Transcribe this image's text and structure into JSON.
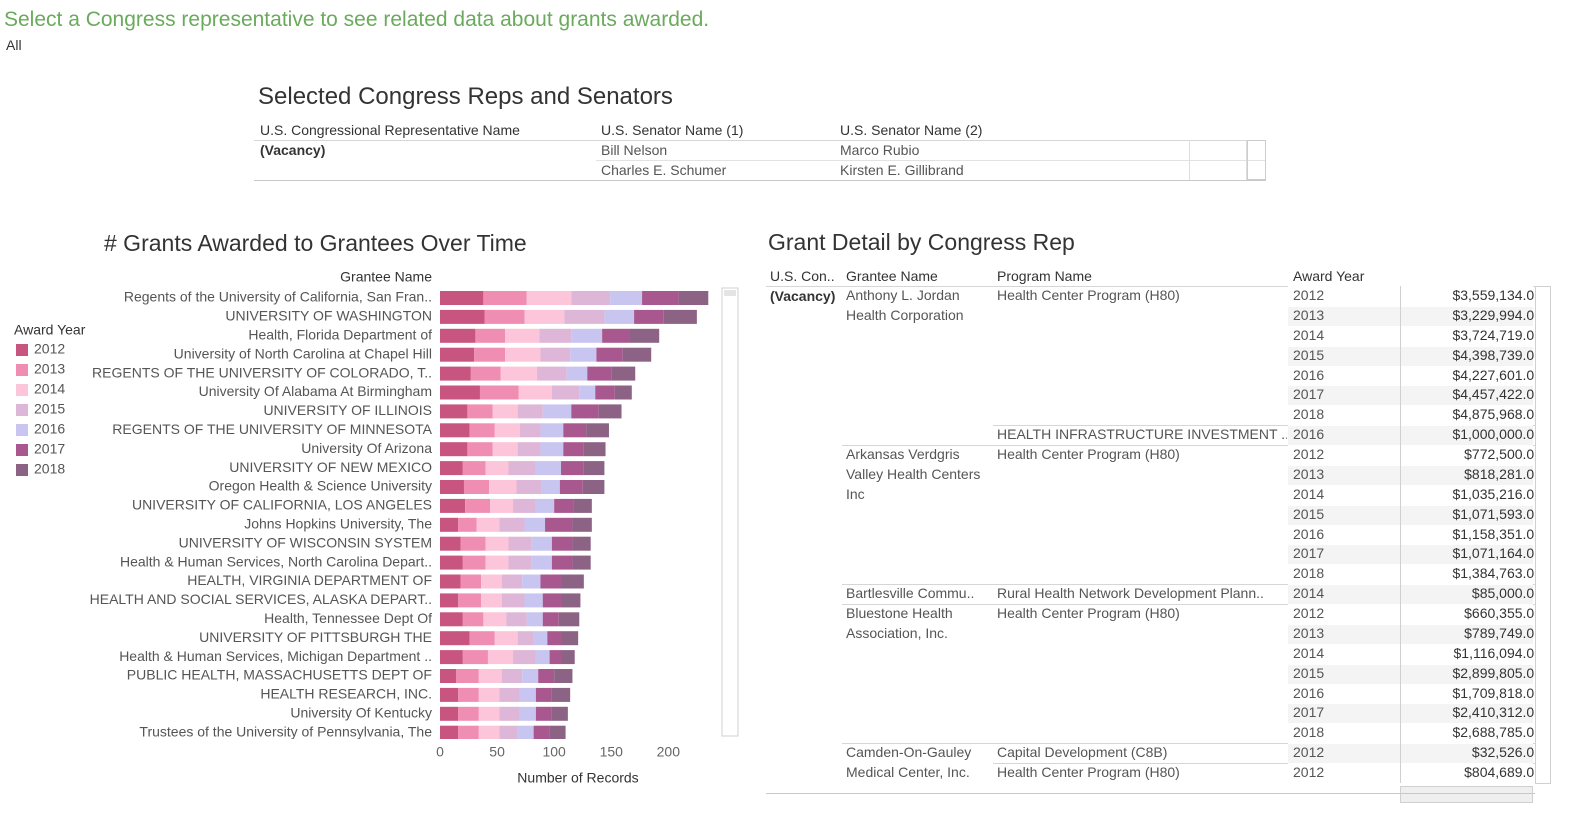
{
  "header": {
    "title": "Select a Congress representative to see related data about grants awarded.",
    "filter_value": "All"
  },
  "reps_table": {
    "title": "Selected Congress Reps and Senators",
    "columns": [
      "U.S. Congressional Representative Name",
      "U.S. Senator Name (1)",
      "U.S. Senator Name (2)"
    ],
    "rep": "(Vacancy)",
    "senators": [
      [
        "Bill Nelson",
        "Marco Rubio"
      ],
      [
        "Charles E. Schumer",
        "Kirsten E. Gillibrand"
      ]
    ]
  },
  "chart_data": {
    "type": "bar",
    "orientation": "horizontal",
    "stacked": true,
    "title": "# Grants Awarded to Grantees Over Time",
    "y_label": "Grantee Name",
    "x_label": "Number of Records",
    "legend_title": "Award Year",
    "categories": [
      "Regents of the University of California, San Fran..",
      "UNIVERSITY OF WASHINGTON",
      "Health, Florida Department of",
      "University of North Carolina at Chapel Hill",
      "REGENTS OF THE UNIVERSITY OF COLORADO, T..",
      "University Of Alabama At Birmingham",
      "UNIVERSITY OF ILLINOIS",
      "REGENTS OF THE UNIVERSITY OF MINNESOTA",
      "University Of Arizona",
      "UNIVERSITY OF NEW MEXICO",
      "Oregon Health & Science University",
      "UNIVERSITY OF CALIFORNIA, LOS ANGELES",
      "Johns Hopkins University, The",
      "UNIVERSITY OF WISCONSIN SYSTEM",
      "Health & Human Services, North Carolina Depart..",
      "HEALTH, VIRGINIA DEPARTMENT OF",
      "HEALTH AND SOCIAL SERVICES, ALASKA DEPART..",
      "Health, Tennessee Dept Of",
      "UNIVERSITY OF PITTSBURGH THE",
      "Health & Human Services, Michigan Department ..",
      "PUBLIC HEALTH, MASSACHUSETTS DEPT OF",
      "HEALTH RESEARCH, INC.",
      "University Of Kentucky",
      "Trustees of the University of Pennsylvania, The"
    ],
    "series": [
      {
        "name": "2012",
        "color": "#c7557f",
        "values": [
          38,
          39,
          31,
          30,
          27,
          35,
          24,
          26,
          24,
          20,
          21,
          22,
          16,
          18,
          20,
          18,
          16,
          20,
          26,
          20,
          14,
          16,
          16,
          16
        ]
      },
      {
        "name": "2013",
        "color": "#f08db2",
        "values": [
          38,
          35,
          26,
          27,
          26,
          34,
          22,
          22,
          22,
          20,
          22,
          22,
          16,
          22,
          20,
          18,
          20,
          18,
          22,
          22,
          20,
          18,
          18,
          18
        ]
      },
      {
        "name": "2014",
        "color": "#fcc5d9",
        "values": [
          39,
          35,
          30,
          31,
          32,
          29,
          22,
          22,
          22,
          20,
          24,
          20,
          20,
          20,
          20,
          18,
          18,
          20,
          20,
          22,
          20,
          18,
          18,
          18
        ]
      },
      {
        "name": "2015",
        "color": "#deb6d7",
        "values": [
          34,
          35,
          28,
          26,
          26,
          24,
          22,
          18,
          20,
          24,
          22,
          20,
          22,
          20,
          20,
          18,
          20,
          18,
          14,
          20,
          18,
          18,
          18,
          16
        ]
      },
      {
        "name": "2016",
        "color": "#c8c5f1",
        "values": [
          28,
          26,
          27,
          23,
          18,
          14,
          25,
          20,
          20,
          22,
          16,
          16,
          18,
          18,
          18,
          16,
          16,
          14,
          12,
          12,
          14,
          14,
          14,
          14
        ]
      },
      {
        "name": "2017",
        "color": "#a9588f",
        "values": [
          32,
          26,
          24,
          23,
          21,
          17,
          24,
          20,
          18,
          20,
          20,
          17,
          24,
          18,
          18,
          18,
          16,
          14,
          12,
          10,
          14,
          14,
          14,
          14
        ]
      },
      {
        "name": "2018",
        "color": "#8c6384",
        "values": [
          26,
          29,
          26,
          25,
          21,
          15,
          20,
          20,
          19,
          18,
          19,
          16,
          17,
          16,
          16,
          20,
          17,
          18,
          15,
          12,
          16,
          16,
          14,
          14
        ]
      }
    ],
    "xlim": [
      0,
      240
    ],
    "xticks": [
      0,
      50,
      100,
      150,
      200
    ]
  },
  "detail_table": {
    "title": "Grant Detail by Congress Rep",
    "columns": [
      "U.S. Con..",
      "Grantee Name",
      "Program Name",
      "Award Year"
    ],
    "rep": "(Vacancy)",
    "grantees": [
      {
        "name": "Anthony L. Jordan Health Corporation",
        "programs": [
          {
            "name": "Health Center Program (H80)",
            "awards": [
              {
                "year": 2012,
                "amount": "$3,559,134.00"
              },
              {
                "year": 2013,
                "amount": "$3,229,994.00"
              },
              {
                "year": 2014,
                "amount": "$3,724,719.00"
              },
              {
                "year": 2015,
                "amount": "$4,398,739.00"
              },
              {
                "year": 2016,
                "amount": "$4,227,601.00"
              },
              {
                "year": 2017,
                "amount": "$4,457,422.00"
              },
              {
                "year": 2018,
                "amount": "$4,875,968.00"
              }
            ]
          },
          {
            "name": "HEALTH INFRASTRUCTURE INVESTMENT ..",
            "awards": [
              {
                "year": 2016,
                "amount": "$1,000,000.00"
              }
            ]
          }
        ]
      },
      {
        "name": "Arkansas Verdgris Valley Health Centers Inc",
        "programs": [
          {
            "name": "Health Center Program (H80)",
            "awards": [
              {
                "year": 2012,
                "amount": "$772,500.00"
              },
              {
                "year": 2013,
                "amount": "$818,281.00"
              },
              {
                "year": 2014,
                "amount": "$1,035,216.00"
              },
              {
                "year": 2015,
                "amount": "$1,071,593.00"
              },
              {
                "year": 2016,
                "amount": "$1,158,351.00"
              },
              {
                "year": 2017,
                "amount": "$1,071,164.00"
              },
              {
                "year": 2018,
                "amount": "$1,384,763.00"
              }
            ]
          }
        ]
      },
      {
        "name": "Bartlesville Commu..",
        "programs": [
          {
            "name": "Rural Health Network Development Plann..",
            "awards": [
              {
                "year": 2014,
                "amount": "$85,000.00"
              }
            ]
          }
        ]
      },
      {
        "name": "Bluestone Health Association, Inc.",
        "programs": [
          {
            "name": "Health Center Program (H80)",
            "awards": [
              {
                "year": 2012,
                "amount": "$660,355.00"
              },
              {
                "year": 2013,
                "amount": "$789,749.00"
              },
              {
                "year": 2014,
                "amount": "$1,116,094.00"
              },
              {
                "year": 2015,
                "amount": "$2,899,805.00"
              },
              {
                "year": 2016,
                "amount": "$1,709,818.00"
              },
              {
                "year": 2017,
                "amount": "$2,410,312.00"
              },
              {
                "year": 2018,
                "amount": "$2,688,785.00"
              }
            ]
          }
        ]
      },
      {
        "name": "Camden-On-Gauley Medical Center, Inc.",
        "programs": [
          {
            "name": "Capital Development (C8B)",
            "awards": [
              {
                "year": 2012,
                "amount": "$32,526.00"
              }
            ]
          },
          {
            "name": "Health Center Program (H80)",
            "awards": [
              {
                "year": 2012,
                "amount": "$804,689.00"
              }
            ]
          }
        ]
      }
    ]
  }
}
